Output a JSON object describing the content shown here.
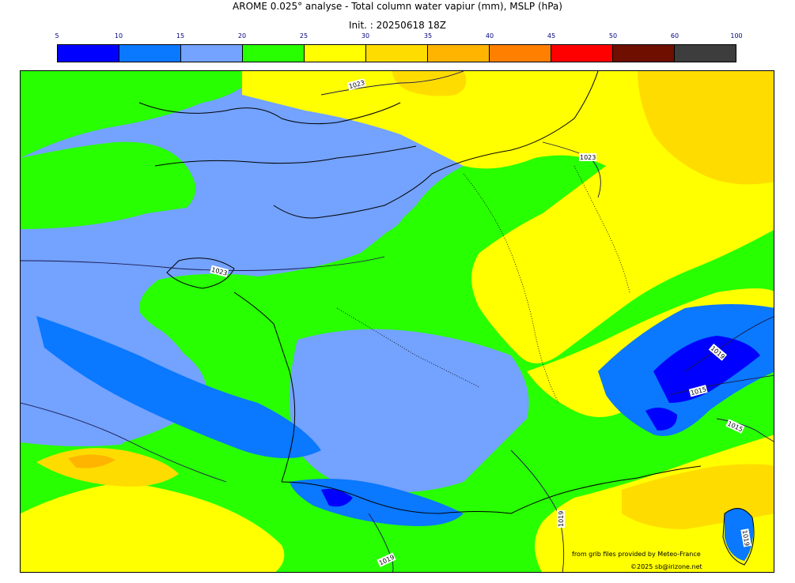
{
  "title": "AROME 0.025° analyse - Total column water vapiur (mm), MSLP (hPa)",
  "init": "Init. : 20250618 18Z",
  "colorbar": {
    "ticks": [
      "5",
      "10",
      "15",
      "20",
      "25",
      "30",
      "35",
      "40",
      "45",
      "50",
      "60",
      "100"
    ],
    "colors": [
      "#0000ff",
      "#0a78ff",
      "#73a2ff",
      "#28ff00",
      "#ffff00",
      "#ffdc00",
      "#ffb400",
      "#ff7f00",
      "#ff0000",
      "#6e0f00",
      "#3d3d3d"
    ]
  },
  "isobars": {
    "labels": [
      "1023",
      "1023",
      "1023",
      "1019",
      "1015",
      "1015",
      "1019",
      "1019",
      "1019"
    ]
  },
  "credits": {
    "source": "from grib files provided by Meteo-France",
    "copyright": "©2025 sb@irizone.net"
  }
}
